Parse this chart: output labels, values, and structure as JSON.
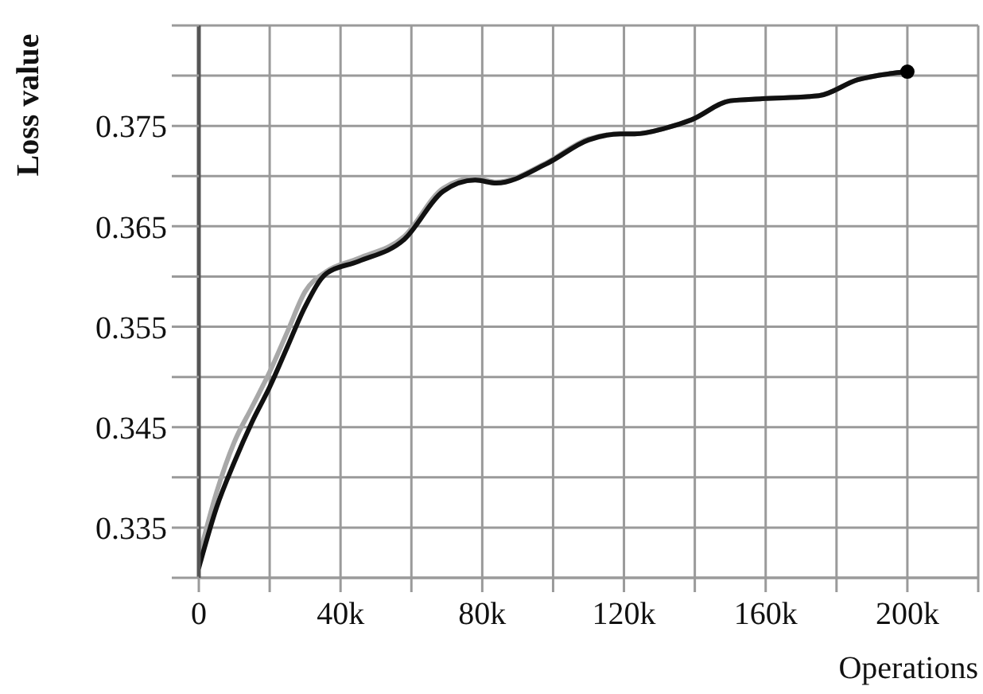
{
  "chart_data": {
    "type": "line",
    "xlabel": "Operations",
    "ylabel": "Loss value",
    "xlim": [
      0,
      220000
    ],
    "ylim": [
      0.33,
      0.385
    ],
    "xticks": [
      {
        "value": 0,
        "label": "0"
      },
      {
        "value": 20000,
        "label": null
      },
      {
        "value": 40000,
        "label": "40k"
      },
      {
        "value": 60000,
        "label": null
      },
      {
        "value": 80000,
        "label": "80k"
      },
      {
        "value": 100000,
        "label": null
      },
      {
        "value": 120000,
        "label": "120k"
      },
      {
        "value": 140000,
        "label": null
      },
      {
        "value": 160000,
        "label": "160k"
      },
      {
        "value": 180000,
        "label": null
      },
      {
        "value": 200000,
        "label": "200k"
      },
      {
        "value": 220000,
        "label": null
      }
    ],
    "yticks": [
      {
        "value": 0.33,
        "label": null
      },
      0.335,
      {
        "value": 0.34,
        "label": null
      },
      0.345,
      {
        "value": 0.35,
        "label": null
      },
      0.355,
      {
        "value": 0.36,
        "label": null
      },
      0.365,
      {
        "value": 0.37,
        "label": null
      },
      0.375,
      {
        "value": 0.38,
        "label": null
      },
      {
        "value": 0.385,
        "label": null
      }
    ],
    "grid": true,
    "marker": "none",
    "line_style": "solid",
    "series": [
      {
        "color": "#a8a8a8",
        "x": [
          0,
          5000,
          10000,
          15000,
          20000,
          25000,
          30000,
          36000,
          45000,
          58000,
          69000,
          78000,
          84000,
          98000,
          110000,
          119000,
          123000,
          132000,
          139000,
          150000,
          159000,
          175000,
          186000,
          195000,
          200000
        ],
        "values": [
          0.332,
          0.3385,
          0.3435,
          0.347,
          0.3505,
          0.3545,
          0.3585,
          0.3605,
          0.3618,
          0.364,
          0.3688,
          0.3698,
          0.3694,
          0.3713,
          0.3737,
          0.3742,
          0.3742,
          0.3748,
          0.3756,
          0.3775,
          0.3777,
          0.378,
          0.3796,
          0.3802,
          0.3804
        ]
      },
      {
        "color": "#111111",
        "x": [
          0,
          5000,
          10000,
          15000,
          20000,
          25000,
          30000,
          36000,
          45000,
          58000,
          69000,
          78000,
          84000,
          98000,
          110000,
          119000,
          123000,
          132000,
          139000,
          150000,
          159000,
          175000,
          186000,
          195000,
          200000
        ],
        "values": [
          0.331,
          0.337,
          0.3415,
          0.3455,
          0.349,
          0.353,
          0.357,
          0.3603,
          0.3615,
          0.3637,
          0.3685,
          0.3696,
          0.3693,
          0.3712,
          0.3736,
          0.3742,
          0.3742,
          0.3748,
          0.3756,
          0.3775,
          0.3777,
          0.378,
          0.3796,
          0.3802,
          0.3804
        ]
      },
      {
        "type": "scatter",
        "color": "#000000",
        "marker": "circle",
        "x": [
          200000
        ],
        "values": [
          0.3804
        ]
      }
    ]
  }
}
